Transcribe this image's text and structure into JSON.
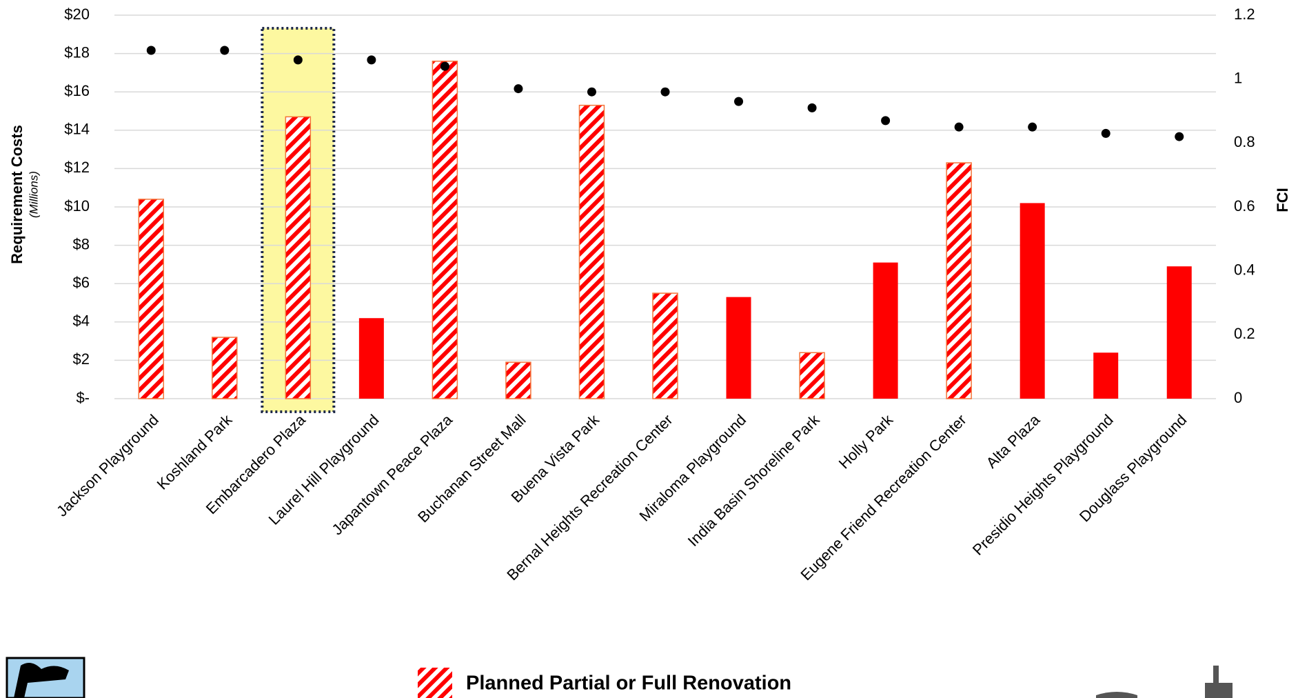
{
  "chart_data": {
    "type": "bar",
    "categories": [
      "Jackson Playground",
      "Koshland Park",
      "Embarcadero Plaza",
      "Laurel Hill Playground",
      "Japantown Peace Plaza",
      "Buchanan Street Mall",
      "Buena Vista Park",
      "Bernal Heights Recreation Center",
      "Miraloma Playground",
      "India Basin Shoreline Park",
      "Holly Park",
      "Eugene Friend Recreation Center",
      "Alta Plaza",
      "Presidio Heights Playground",
      "Douglass Playground"
    ],
    "series": [
      {
        "color": "#ff0000",
        "values": [
          10.4,
          3.2,
          14.7,
          4.2,
          17.6,
          1.9,
          15.3,
          5.5,
          5.3,
          2.4,
          7.1,
          12.3,
          10.2,
          2.4,
          6.9
        ],
        "hatched": [
          true,
          true,
          true,
          false,
          true,
          true,
          true,
          true,
          false,
          true,
          false,
          true,
          false,
          false,
          false
        ]
      },
      {
        "type": "scatter",
        "axis": "y2",
        "color": "#000000",
        "values": [
          1.09,
          1.09,
          1.06,
          1.06,
          1.04,
          0.97,
          0.96,
          0.96,
          0.93,
          0.91,
          0.87,
          0.85,
          0.85,
          0.83,
          0.82
        ]
      }
    ],
    "highlighted": [
      false,
      false,
      true,
      false,
      false,
      false,
      false,
      false,
      false,
      false,
      false,
      false,
      false,
      false,
      false
    ],
    "highlight_color": "#fdf8a0",
    "y_label": "Requirement Costs",
    "y_sublabel": "(Millions)",
    "y2_label": "FCI",
    "ylim": [
      0,
      20
    ],
    "yticks": [
      {
        "value": 0,
        "label": "$-"
      },
      {
        "value": 2,
        "label": "$2"
      },
      {
        "value": 4,
        "label": "$4"
      },
      {
        "value": 6,
        "label": "$6"
      },
      {
        "value": 8,
        "label": "$8"
      },
      {
        "value": 10,
        "label": "$10"
      },
      {
        "value": 12,
        "label": "$12"
      },
      {
        "value": 14,
        "label": "$14"
      },
      {
        "value": 16,
        "label": "$16"
      },
      {
        "value": 18,
        "label": "$18"
      },
      {
        "value": 20,
        "label": "$20"
      }
    ],
    "y2lim": [
      0,
      1.2
    ],
    "y2ticks": [
      0,
      0.2,
      0.4,
      0.6,
      0.8,
      1,
      1.2
    ],
    "grid": true,
    "legend": {
      "label": "Planned Partial or Full Renovation"
    }
  }
}
